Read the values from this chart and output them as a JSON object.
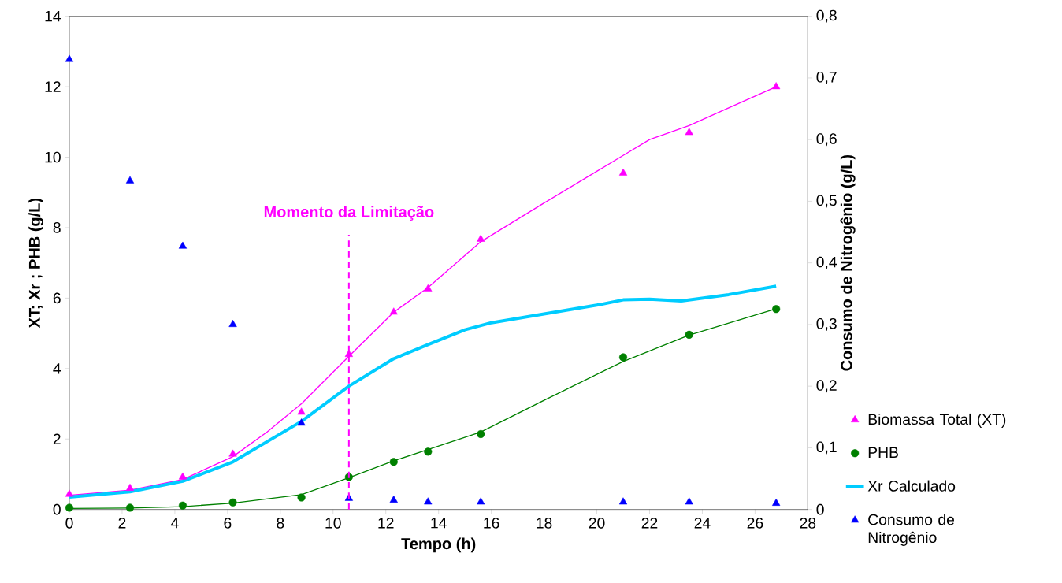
{
  "chart_data": {
    "type": "scatter",
    "xlabel": "Tempo (h)",
    "ylabel": "XT; Xr ; PHB (g/L)",
    "y2label": "Consumo de Nitrogênio (g/L)",
    "xlim": [
      0,
      28
    ],
    "xticks": [
      0,
      2,
      4,
      6,
      8,
      10,
      12,
      14,
      16,
      18,
      20,
      22,
      24,
      26,
      28
    ],
    "ylim": [
      0,
      14
    ],
    "yticks": [
      0,
      2,
      4,
      6,
      8,
      10,
      12,
      14
    ],
    "y2lim": [
      0,
      0.8
    ],
    "y2ticks": [
      0,
      {
        "value": 0.1,
        "label": "0,1"
      },
      {
        "value": 0.2,
        "label": "0,2"
      },
      {
        "value": 0.3,
        "label": "0,3"
      },
      {
        "value": 0.4,
        "label": "0,4"
      },
      {
        "value": 0.5,
        "label": "0,5"
      },
      {
        "value": 0.6,
        "label": "0,6"
      },
      {
        "value": 0.7,
        "label": "0,7"
      },
      {
        "value": 0.8,
        "label": "0,8"
      }
    ],
    "legend": "right",
    "grid": false,
    "ref_lines": [
      {
        "axis": "x",
        "value": 10.6,
        "label": "Momento da Limitação",
        "color": "#ff00ff",
        "line_style": "dashed"
      }
    ],
    "series": [
      {
        "name": "Biomassa Total (XT)",
        "marker": "triangle",
        "color": "#ff00ff",
        "x": [
          0,
          2.3,
          4.3,
          6.2,
          8.8,
          10.6,
          12.3,
          13.6,
          15.6,
          21,
          23.5,
          26.8
        ],
        "values": [
          0.43,
          0.6,
          0.92,
          1.57,
          2.76,
          4.4,
          5.6,
          6.26,
          7.67,
          9.55,
          10.7,
          12.0
        ]
      },
      {
        "type": "line",
        "marker": "none",
        "color": "#ff00ff",
        "x": [
          0,
          2.3,
          4.3,
          6.2,
          7.5,
          8.8,
          10.6,
          12.3,
          13.6,
          15.6,
          18,
          20,
          21,
          22,
          23.5,
          25,
          26.8
        ],
        "values": [
          0.4,
          0.55,
          0.85,
          1.5,
          2.2,
          3.0,
          4.35,
          5.6,
          6.3,
          7.6,
          8.7,
          9.6,
          10.05,
          10.5,
          10.9,
          11.4,
          12.0
        ]
      },
      {
        "name": "PHB",
        "marker": "circle",
        "color": "#008000",
        "x": [
          0,
          2.3,
          4.3,
          6.2,
          8.8,
          10.6,
          12.3,
          13.6,
          15.6,
          21,
          23.5,
          26.8
        ],
        "values": [
          0.05,
          0.05,
          0.11,
          0.2,
          0.34,
          0.92,
          1.35,
          1.64,
          2.14,
          4.32,
          4.96,
          5.69
        ]
      },
      {
        "type": "line",
        "marker": "none",
        "color": "#008000",
        "x": [
          0,
          2.3,
          4.3,
          6.2,
          8.8,
          10.6,
          12.3,
          13.6,
          15.6,
          18,
          21,
          23.5,
          26.8
        ],
        "values": [
          0.03,
          0.04,
          0.08,
          0.18,
          0.42,
          0.9,
          1.38,
          1.7,
          2.2,
          3.1,
          4.2,
          4.95,
          5.7
        ]
      },
      {
        "name": "Xr Calculado",
        "type": "line",
        "marker": "none",
        "color": "#00ccff",
        "x": [
          0,
          2.3,
          4.3,
          6.2,
          8.8,
          10.6,
          12.3,
          13.6,
          15,
          16,
          18,
          20,
          21,
          22,
          23.2,
          25,
          26.8
        ],
        "values": [
          0.35,
          0.5,
          0.8,
          1.35,
          2.5,
          3.5,
          4.28,
          4.68,
          5.1,
          5.3,
          5.55,
          5.8,
          5.95,
          5.97,
          5.92,
          6.1,
          6.34
        ]
      },
      {
        "name": "Consumo de Nitrogênio",
        "marker": "triangle",
        "axis": "y2",
        "color": "#0000ff",
        "x": [
          0,
          2.3,
          4.3,
          6.2,
          8.8,
          10.6,
          12.3,
          13.6,
          15.6,
          21,
          23.5,
          26.8
        ],
        "values": [
          0.73,
          0.533,
          0.427,
          0.3,
          0.14,
          0.018,
          0.015,
          0.012,
          0.012,
          0.012,
          0.012,
          0.01
        ]
      }
    ]
  }
}
